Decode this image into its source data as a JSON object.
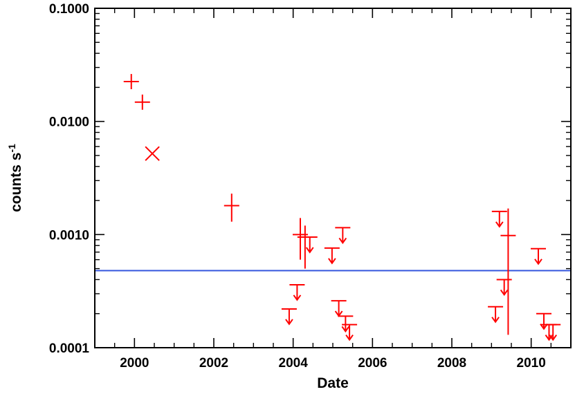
{
  "chart_data": {
    "type": "scatter",
    "xlabel": "Date",
    "ylabel": "counts s",
    "ylabel_superscript": "-1",
    "xscale": "linear",
    "yscale": "log",
    "xlim": [
      1999.0,
      2011.0
    ],
    "ylim": [
      0.0001,
      0.1
    ],
    "x_ticks": [
      "2000",
      "2002",
      "2004",
      "2006",
      "2008",
      "2010"
    ],
    "y_ticks": [
      "0.0001",
      "0.0010",
      "0.0100",
      "0.1000"
    ],
    "grid": false,
    "legend": "none",
    "colors": {
      "points": "#ff0000",
      "line": "#3355dd"
    },
    "reference_line": {
      "y": 0.00048
    },
    "detections": [
      {
        "x": 1999.92,
        "y": 0.0225
      },
      {
        "x": 2000.2,
        "y": 0.0148
      },
      {
        "x": 2002.45,
        "y": 0.0018,
        "yerr": [
          0.0013,
          0.0023
        ]
      },
      {
        "x": 2004.18,
        "y": 0.001,
        "yerr": [
          0.0006,
          0.0014
        ]
      },
      {
        "x": 2004.3,
        "y": 0.00095,
        "yerr": [
          0.0005,
          0.0012
        ]
      },
      {
        "x": 2009.42,
        "y": 0.00098,
        "yerr": [
          0.00013,
          0.0017
        ]
      }
    ],
    "special": [
      {
        "x": 2000.45,
        "y": 0.0052,
        "marker": "x"
      }
    ],
    "upper_limits": [
      {
        "x": 2003.9,
        "y": 0.00022
      },
      {
        "x": 2004.1,
        "y": 0.00036
      },
      {
        "x": 2004.42,
        "y": 0.00095
      },
      {
        "x": 2004.98,
        "y": 0.00076
      },
      {
        "x": 2005.15,
        "y": 0.00026
      },
      {
        "x": 2005.25,
        "y": 0.00115
      },
      {
        "x": 2005.32,
        "y": 0.00019
      },
      {
        "x": 2005.42,
        "y": 0.00016
      },
      {
        "x": 2009.1,
        "y": 0.00023
      },
      {
        "x": 2009.2,
        "y": 0.0016
      },
      {
        "x": 2009.32,
        "y": 0.0004
      },
      {
        "x": 2010.18,
        "y": 0.00075
      },
      {
        "x": 2010.32,
        "y": 0.0002
      },
      {
        "x": 2010.45,
        "y": 0.00016
      },
      {
        "x": 2010.55,
        "y": 0.00016
      }
    ]
  }
}
